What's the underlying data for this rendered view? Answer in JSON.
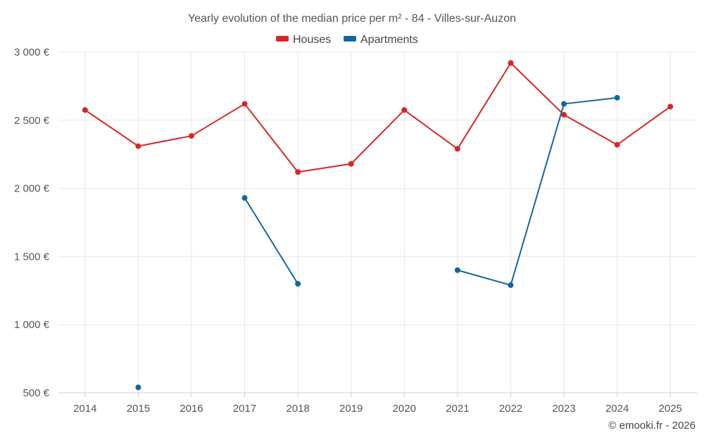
{
  "chart_data": {
    "type": "line",
    "title": "Yearly evolution of the median price per m² - 84 - Villes-sur-Auzon",
    "categories": [
      "2014",
      "2015",
      "2016",
      "2017",
      "2018",
      "2019",
      "2020",
      "2021",
      "2022",
      "2023",
      "2024",
      "2025"
    ],
    "y_ticks": [
      "500 €",
      "1 000 €",
      "1 500 €",
      "2 000 €",
      "2 500 €",
      "3 000 €"
    ],
    "y_tick_values": [
      500,
      1000,
      1500,
      2000,
      2500,
      3000
    ],
    "ylim": [
      500,
      3000
    ],
    "xlabel": "",
    "ylabel": "",
    "grid": true,
    "legend_position": "top-center",
    "series": [
      {
        "name": "Houses",
        "color": "#d62728",
        "values": [
          2575,
          2310,
          2385,
          2620,
          2120,
          2180,
          2575,
          2290,
          2920,
          2540,
          2320,
          2600
        ]
      },
      {
        "name": "Apartments",
        "color": "#1167a0",
        "values": [
          null,
          540,
          null,
          1930,
          1300,
          null,
          null,
          1400,
          1290,
          2620,
          2665,
          null
        ]
      }
    ],
    "credit": "© emooki.fr - 2026"
  }
}
